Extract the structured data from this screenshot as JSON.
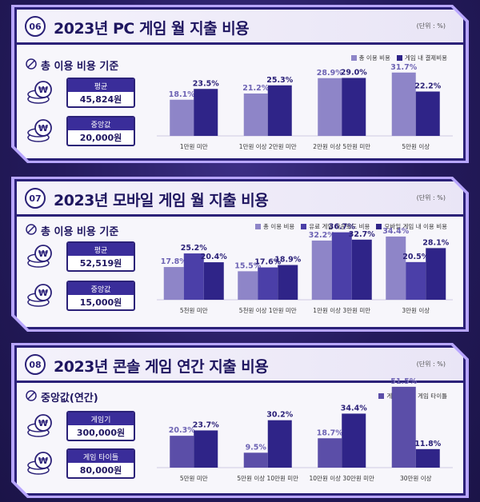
{
  "colors": {
    "series_light": "#8e85c8",
    "series_mid": "#4b3fa8",
    "series_dark": "#2f2488"
  },
  "unit_label": "(단위 : %)",
  "panels": [
    {
      "number": "06",
      "title": "2023년 PC 게임 월 지출 비용",
      "stat_header": "총 이용 비용 기준",
      "stats": [
        {
          "label": "평균",
          "value": "45,824원"
        },
        {
          "label": "중앙값",
          "value": "20,000원"
        }
      ]
    },
    {
      "number": "07",
      "title": "2023년 모바일 게임 월 지출 비용",
      "stat_header": "총 이용 비용 기준",
      "stats": [
        {
          "label": "평균",
          "value": "52,519원"
        },
        {
          "label": "중앙값",
          "value": "15,000원"
        }
      ]
    },
    {
      "number": "08",
      "title": "2023년 콘솔 게임 연간 지출 비용",
      "stat_header": "중앙값(연간)",
      "stats": [
        {
          "label": "게임기",
          "value": "300,000원"
        },
        {
          "label": "게임 타이틀",
          "value": "80,000원"
        }
      ]
    }
  ],
  "chart_data": [
    {
      "type": "bar",
      "title": "2023년 PC 게임 월 지출 비용",
      "categories": [
        "1만원 미만",
        "1만원 이상 2만원 미만",
        "2만원 이상 5만원 미만",
        "5만원 이상"
      ],
      "series": [
        {
          "name": "총 이용 비용",
          "values": [
            18.1,
            21.2,
            28.9,
            31.7
          ]
        },
        {
          "name": "게임 내 결제비용",
          "values": [
            23.5,
            25.3,
            29.0,
            22.2
          ]
        }
      ],
      "ylim": [
        0,
        40
      ]
    },
    {
      "type": "bar",
      "title": "2023년 모바일 게임 월 지출 비용",
      "categories": [
        "5천원 미만",
        "5천원 이상 1만원 미만",
        "1만원 이상 3만원 미만",
        "3만원 이상"
      ],
      "series": [
        {
          "name": "총 이용 비용",
          "values": [
            17.8,
            15.5,
            32.2,
            34.4
          ]
        },
        {
          "name": "유료 게임 다운로드 비용",
          "values": [
            25.2,
            17.6,
            36.7,
            20.5
          ]
        },
        {
          "name": "모바일 게임 내 이용 비용",
          "values": [
            20.4,
            18.9,
            32.7,
            28.1
          ]
        }
      ],
      "ylim": [
        0,
        40
      ]
    },
    {
      "type": "bar",
      "title": "2023년 콘솔 게임 연간 지출 비용",
      "categories": [
        "5만원 미만",
        "5만원 이상 10만원 미만",
        "10만원 이상 30만원 미만",
        "30만원 이상"
      ],
      "series": [
        {
          "name": "게임기",
          "values": [
            20.3,
            9.5,
            18.7,
            51.5
          ]
        },
        {
          "name": "게임 타이틀",
          "values": [
            23.7,
            30.2,
            34.4,
            11.8
          ]
        }
      ],
      "ylim": [
        0,
        55
      ]
    }
  ]
}
